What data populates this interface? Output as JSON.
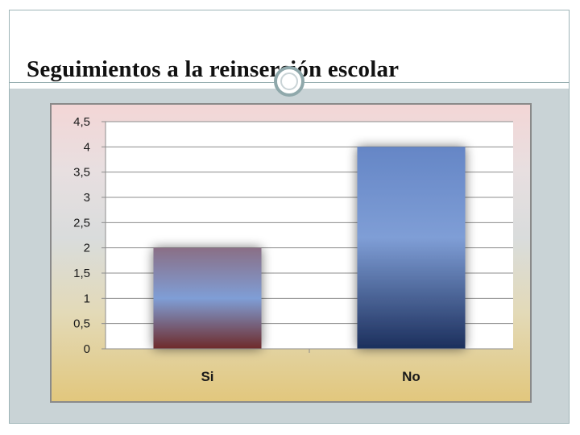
{
  "slide": {
    "title": "Seguimientos a la reinserción escolar"
  },
  "colors": {
    "frame_fill": "#c9d3d6",
    "accent": "#8ea9ab",
    "bar_si_top": "#8a6f86",
    "bar_si_bottom": "#6e2a2a",
    "bar_no_top": "#6586c6",
    "bar_no_bottom": "#1c2f5c"
  },
  "chart_data": {
    "type": "bar",
    "title": "",
    "xlabel": "",
    "ylabel": "",
    "categories": [
      "Si",
      "No"
    ],
    "values": [
      2,
      4
    ],
    "ylim": [
      0,
      4.5
    ],
    "yticks": [
      "0",
      "0,5",
      "1",
      "1,5",
      "2",
      "2,5",
      "3",
      "3,5",
      "4",
      "4,5"
    ],
    "ytick_values": [
      0,
      0.5,
      1,
      1.5,
      2,
      2.5,
      3,
      3.5,
      4,
      4.5
    ],
    "grid": true,
    "legend": "none"
  }
}
